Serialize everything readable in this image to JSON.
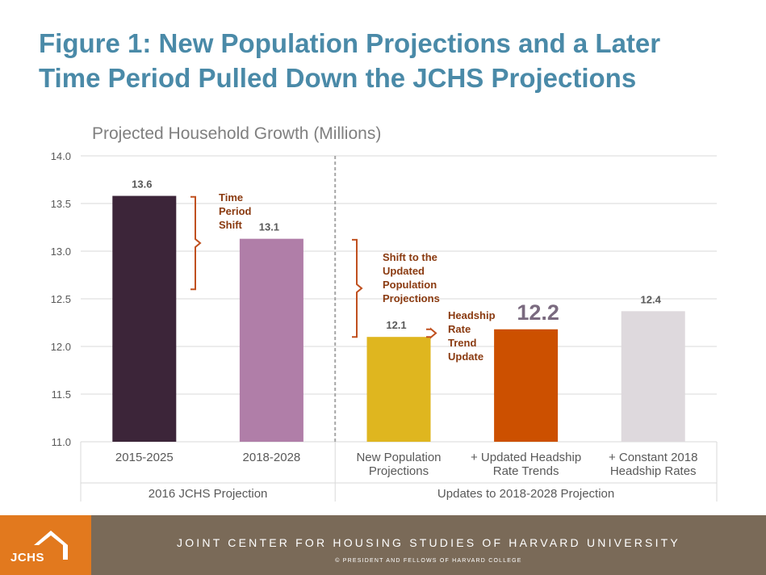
{
  "title_line1": "Figure 1: New Population Projections and a Later",
  "title_line2": "Time Period Pulled Down the JCHS Projections",
  "chart_data": {
    "type": "bar",
    "title": "Projected Household Growth (Millions)",
    "ylim": [
      11.0,
      14.0
    ],
    "yticks": [
      "11.0",
      "11.5",
      "12.0",
      "12.5",
      "13.0",
      "13.5",
      "14.0"
    ],
    "grid": true,
    "bars": [
      {
        "category": "2015-2025",
        "value": 13.58,
        "label": "13.6",
        "color": "#3c2539",
        "group": 0
      },
      {
        "category": "2018-2028",
        "value": 13.13,
        "label": "13.1",
        "color": "#b07ea8",
        "group": 0
      },
      {
        "category": "New Population Projections",
        "value": 12.1,
        "label": "12.1",
        "color": "#dfb61f",
        "group": 1
      },
      {
        "category": "+ Updated Headship Rate Trends",
        "value": 12.18,
        "label": "12.2",
        "color": "#cc5000",
        "group": 1
      },
      {
        "category": "+ Constant 2018 Headship Rates",
        "value": 12.37,
        "label": "12.4",
        "color": "#ded9dd",
        "group": 1
      }
    ],
    "category_lines": [
      [
        "2015-2025"
      ],
      [
        "2018-2028"
      ],
      [
        "New Population",
        "Projections"
      ],
      [
        "+ Updated Headship",
        "Rate Trends"
      ],
      [
        "+ Constant 2018",
        "Headship Rates"
      ]
    ],
    "groups": [
      "2016 JCHS Projection",
      "Updates to 2018-2028 Projection"
    ],
    "annotations": [
      {
        "lines": [
          "Time",
          "Period",
          "Shift"
        ],
        "from": 12.6,
        "to": 13.57
      },
      {
        "lines": [
          "Shift to the",
          "Updated",
          "Population",
          "Projections"
        ],
        "from": 12.1,
        "to": 13.12
      },
      {
        "lines": [
          "Headship",
          "Rate",
          "Trend",
          "Update"
        ],
        "from": 12.1,
        "to": 12.18
      }
    ],
    "annotation_color": "#c0501f"
  },
  "colors": {
    "title": "#4a8aa8",
    "footer_band": "#7a6a58",
    "logo_bg": "#e2791e"
  },
  "footer": {
    "logo_text": "JCHS",
    "main": "JOINT CENTER FOR HOUSING STUDIES OF HARVARD UNIVERSITY",
    "sub": "© PRESIDENT AND FELLOWS OF HARVARD COLLEGE"
  }
}
